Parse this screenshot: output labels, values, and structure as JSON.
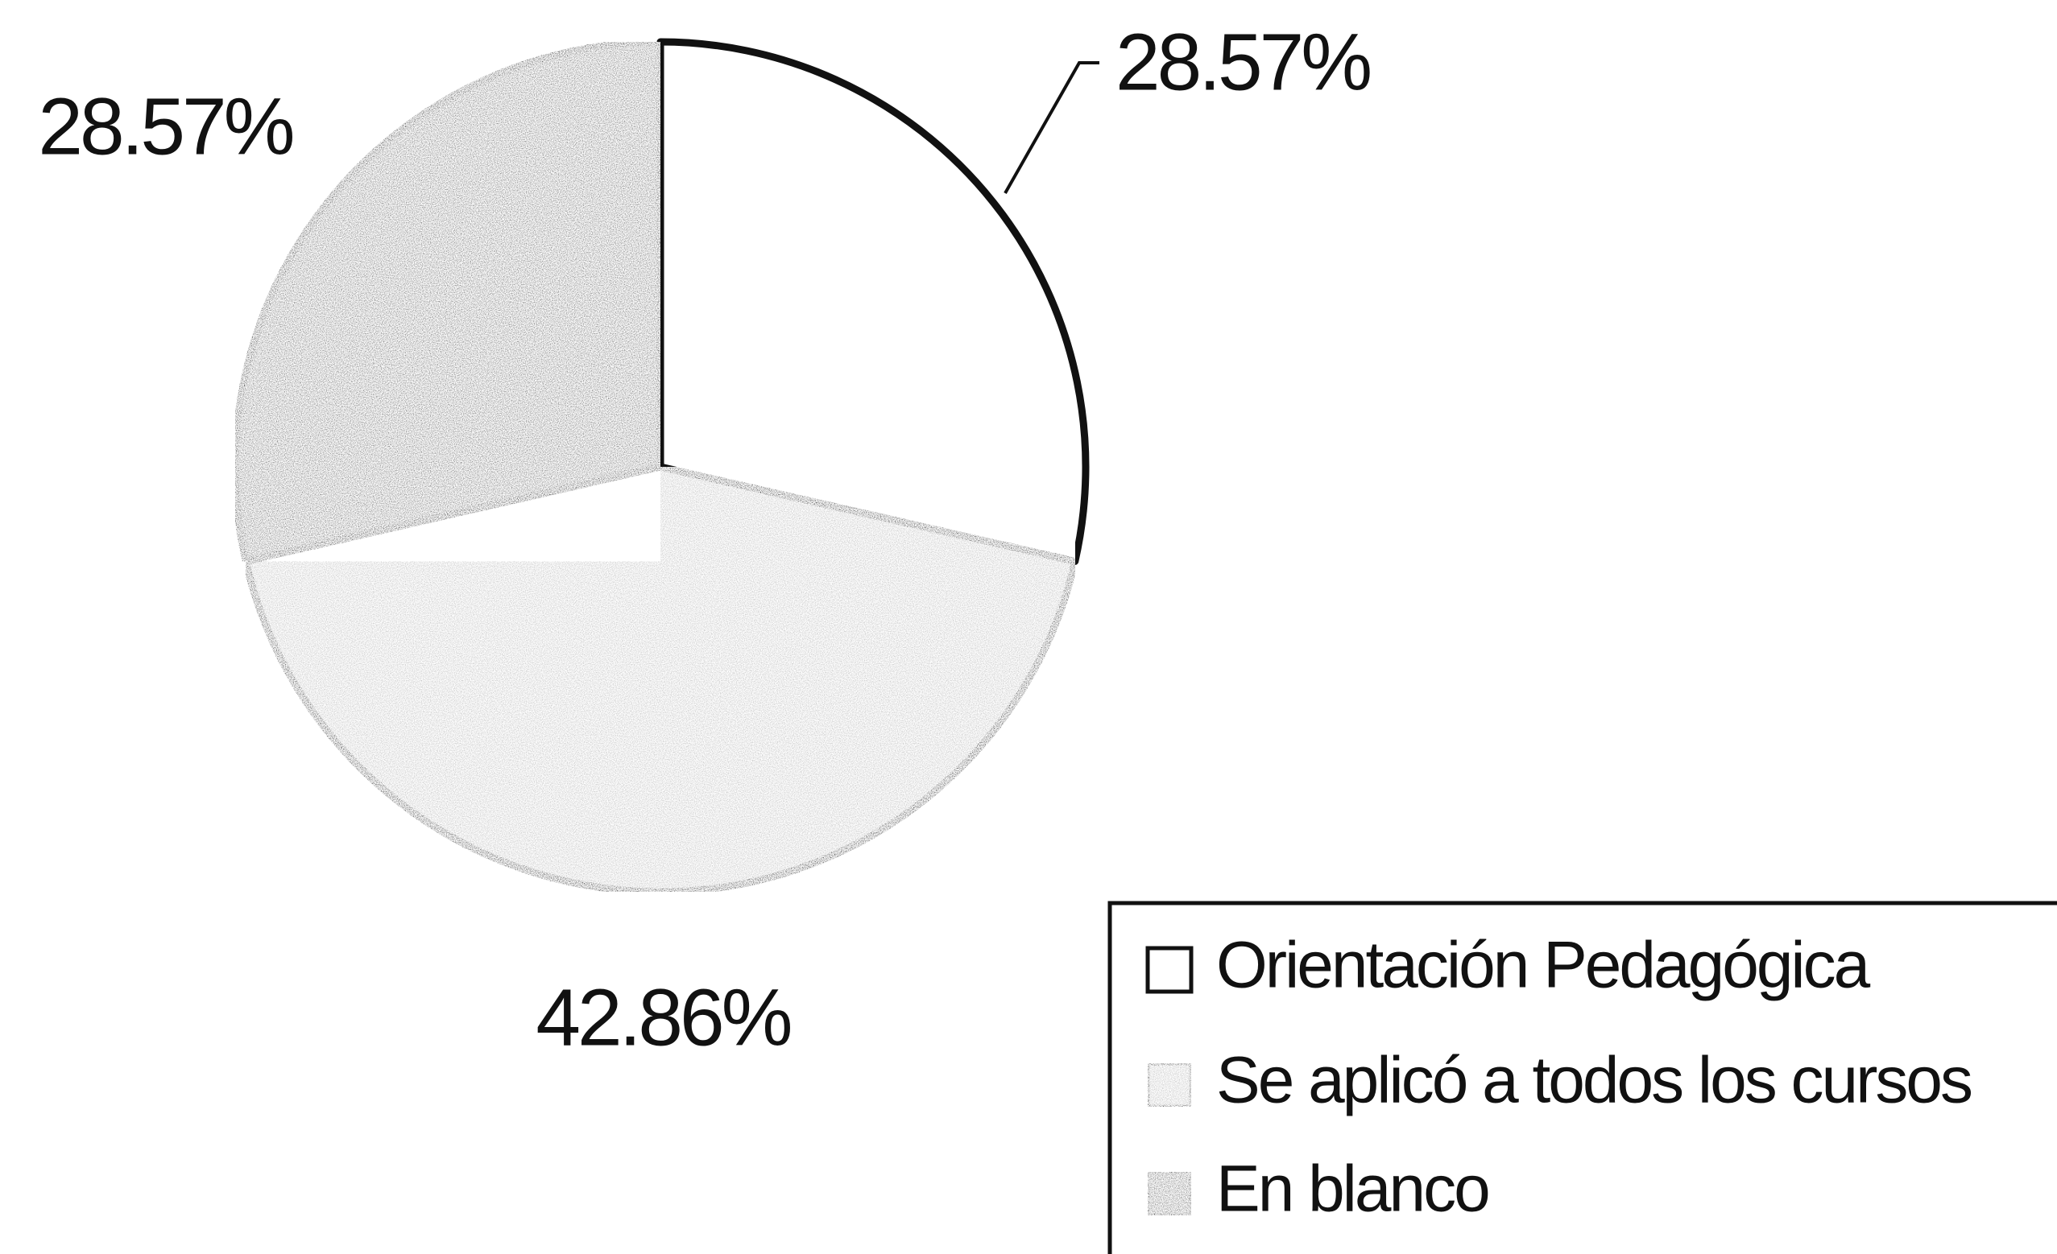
{
  "chart_data": {
    "type": "pie",
    "categories": [
      "Orientación Pedagógica",
      "Se aplicó a todos los cursos",
      "En blanco"
    ],
    "values": [
      28.57,
      42.86,
      28.57
    ],
    "value_labels": [
      "28.57%",
      "42.86%",
      "28.57%"
    ],
    "colors": [
      "#ffffff",
      "#c4c4c4",
      "#707070"
    ],
    "legend": "lower right"
  }
}
